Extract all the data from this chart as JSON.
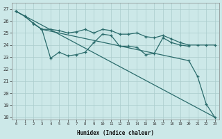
{
  "bg_color": "#cce8e8",
  "grid_color": "#aacccc",
  "line_color": "#2a6b6b",
  "xlabel": "Humidex (Indice chaleur)",
  "xlim": [
    -0.5,
    23.5
  ],
  "ylim": [
    17.8,
    27.5
  ],
  "xticks": [
    0,
    1,
    2,
    3,
    4,
    5,
    6,
    7,
    8,
    9,
    10,
    11,
    12,
    13,
    14,
    15,
    16,
    17,
    18,
    19,
    20,
    21,
    22,
    23
  ],
  "yticks": [
    18,
    19,
    20,
    21,
    22,
    23,
    24,
    25,
    26,
    27
  ],
  "line_straight": {
    "x": [
      0,
      23
    ],
    "y": [
      26.8,
      18.0
    ]
  },
  "line_top": {
    "x": [
      0,
      1,
      2,
      3,
      4,
      5,
      6,
      7,
      8,
      9,
      10,
      11,
      12,
      13,
      14,
      15,
      16,
      17,
      18,
      19,
      20,
      21,
      22,
      23
    ],
    "y": [
      26.8,
      26.4,
      25.8,
      25.3,
      25.3,
      25.2,
      25.0,
      25.1,
      25.3,
      25.0,
      25.3,
      25.2,
      24.9,
      24.9,
      25.0,
      24.7,
      24.6,
      24.8,
      24.5,
      24.2,
      24.0,
      24.0,
      24.0,
      24.0
    ]
  },
  "line_mid": {
    "x": [
      2,
      3,
      4,
      5,
      6,
      7,
      8,
      9,
      10,
      11,
      12,
      13,
      14,
      15,
      16,
      17,
      18,
      19,
      20
    ],
    "y": [
      25.8,
      25.3,
      22.9,
      23.4,
      23.1,
      23.2,
      23.4,
      24.2,
      24.9,
      24.8,
      23.9,
      23.9,
      23.8,
      23.2,
      23.3,
      24.6,
      24.2,
      24.0,
      23.9
    ]
  },
  "line_drop": {
    "x": [
      0,
      1,
      2,
      3,
      20,
      21,
      22,
      23
    ],
    "y": [
      26.8,
      26.4,
      25.8,
      25.3,
      22.7,
      21.4,
      19.1,
      18.0
    ]
  }
}
